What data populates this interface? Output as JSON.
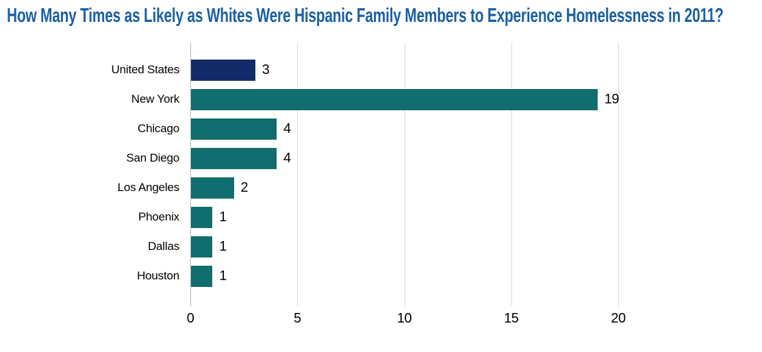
{
  "title": "How Many Times as Likely as Whites Were Hispanic Family Members to Experience Homelessness in 2011?",
  "chart_data": {
    "type": "bar",
    "orientation": "horizontal",
    "title": "How Many Times as Likely as Whites Were Hispanic Family Members to Experience Homelessness in 2011?",
    "categories": [
      "United States",
      "New York",
      "Chicago",
      "San Diego",
      "Los Angeles",
      "Phoenix",
      "Dallas",
      "Houston"
    ],
    "values": [
      3,
      19,
      4,
      4,
      2,
      1,
      1,
      1
    ],
    "data_labels": [
      "3",
      "19",
      "4",
      "4",
      "2",
      "1",
      "1",
      "1"
    ],
    "xlabel": "",
    "ylabel": "",
    "x_ticks": [
      0,
      5,
      10,
      15,
      20
    ],
    "x_tick_labels": [
      "0",
      "5",
      "10",
      "15",
      "20"
    ],
    "xlim": [
      0,
      26
    ],
    "grid": "vertical gridlines on, no horizontal axis line",
    "legend": "none",
    "highlighted_category": "United States",
    "colors": {
      "title_text": "#1a5fa4",
      "highlight_bar": "#132a69",
      "default_bar": "#106e6e",
      "gridline": "#d9d9d9",
      "axis_line": "#b3b3b3",
      "label_text": "#000000"
    }
  }
}
